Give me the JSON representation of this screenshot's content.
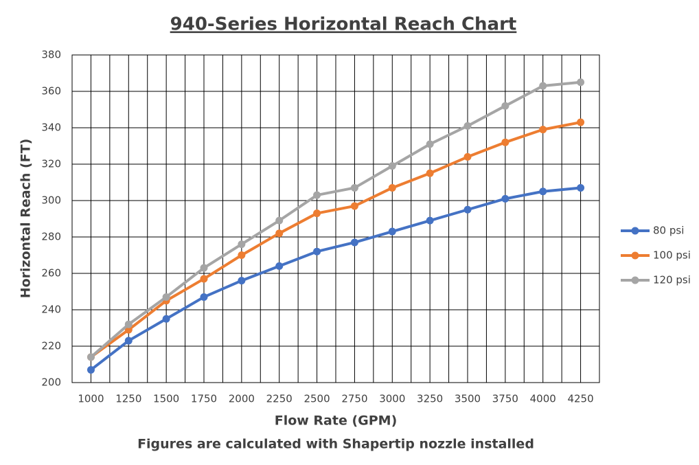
{
  "chart_data": {
    "type": "line",
    "title": "940-Series Horizontal Reach Chart",
    "x_label": "Flow Rate (GPM)",
    "subtitle": "Figures are calculated with Shapertip nozzle installed",
    "y_label": "Horizontal Reach (FT)",
    "categories": [
      "1000",
      "1250",
      "1500",
      "1750",
      "2000",
      "2250",
      "2500",
      "2750",
      "3000",
      "3250",
      "3500",
      "3750",
      "4000",
      "4250"
    ],
    "series": [
      {
        "name": "80 psi",
        "color": "#4472c4",
        "values": [
          207,
          223,
          235,
          247,
          256,
          264,
          272,
          277,
          283,
          289,
          295,
          301,
          305,
          307
        ]
      },
      {
        "name": "100 psi",
        "color": "#ed7d31",
        "values": [
          214,
          229,
          245,
          257,
          270,
          282,
          293,
          297,
          307,
          315,
          324,
          332,
          339,
          343
        ]
      },
      {
        "name": "120 psi",
        "color": "#a5a5a5",
        "values": [
          214,
          232,
          247,
          263,
          276,
          289,
          303,
          307,
          319,
          331,
          341,
          352,
          363,
          365
        ]
      }
    ],
    "ylim": [
      200,
      380
    ],
    "yticks": [
      200,
      220,
      240,
      260,
      280,
      300,
      320,
      340,
      360,
      380
    ],
    "grid": true,
    "legend": "right"
  }
}
